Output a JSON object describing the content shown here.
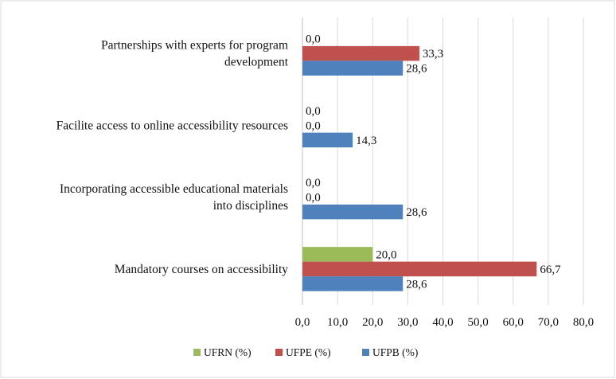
{
  "chart_data": {
    "type": "bar",
    "orientation": "horizontal",
    "categories": [
      [
        "Partnerships with experts for program",
        "development"
      ],
      [
        "Facilite access to online accessibility resources"
      ],
      [
        "Incorporating accessible educational materials",
        "into disciplines"
      ],
      [
        "Mandatory courses on accessibility"
      ]
    ],
    "series": [
      {
        "name": "UFRN (%)",
        "color": "#9bbb59",
        "values": [
          0.0,
          0.0,
          0.0,
          20.0
        ],
        "labels": [
          "0,0",
          "0,0",
          "0,0",
          "20,0"
        ]
      },
      {
        "name": "UFPE (%)",
        "color": "#c0504d",
        "values": [
          33.3,
          0.0,
          0.0,
          66.7
        ],
        "labels": [
          "33,3",
          "0,0",
          "0,0",
          "66,7"
        ]
      },
      {
        "name": "UFPB (%)",
        "color": "#4f81bd",
        "values": [
          28.6,
          14.3,
          28.6,
          28.6
        ],
        "labels": [
          "28,6",
          "14,3",
          "28,6",
          "28,6"
        ]
      }
    ],
    "xlim": [
      0,
      80
    ],
    "xticks": [
      "0,0",
      "10,0",
      "20,0",
      "30,0",
      "40,0",
      "50,0",
      "60,0",
      "70,0",
      "80,0"
    ],
    "grid": "vertical",
    "legend_position": "bottom",
    "title": "",
    "xlabel": "",
    "ylabel": ""
  }
}
